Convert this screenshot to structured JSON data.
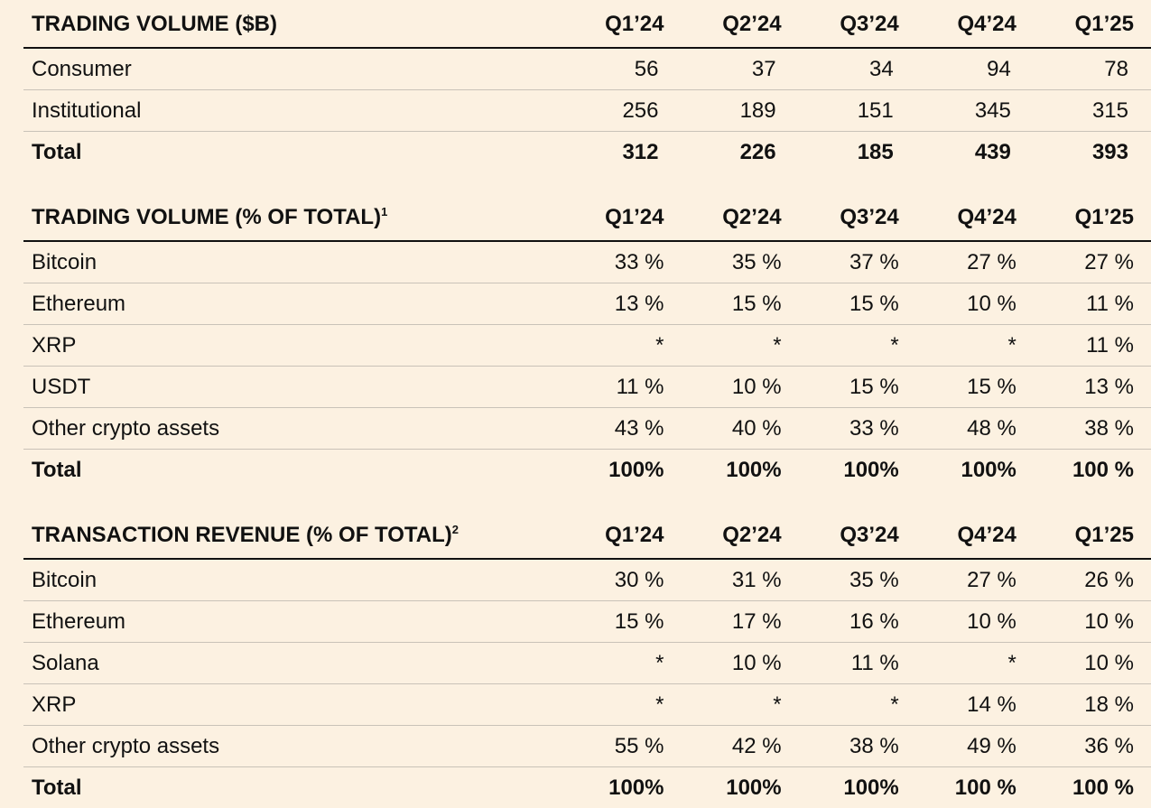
{
  "tables": [
    {
      "title": "TRADING VOLUME ($B)",
      "footnote": "",
      "columns": [
        "Q1’24",
        "Q2’24",
        "Q3’24",
        "Q4’24",
        "Q1’25"
      ],
      "rows": [
        {
          "label": "Consumer",
          "values": [
            "56",
            "37",
            "34",
            "94",
            "78"
          ]
        },
        {
          "label": "Institutional",
          "values": [
            "256",
            "189",
            "151",
            "345",
            "315"
          ]
        },
        {
          "label": "Total",
          "values": [
            "312",
            "226",
            "185",
            "439",
            "393"
          ]
        }
      ]
    },
    {
      "title": "TRADING VOLUME (% OF TOTAL)",
      "footnote": "1",
      "columns": [
        "Q1’24",
        "Q2’24",
        "Q3’24",
        "Q4’24",
        "Q1’25"
      ],
      "rows": [
        {
          "label": "Bitcoin",
          "values": [
            "33 %",
            "35 %",
            "37 %",
            "27 %",
            "27 %"
          ]
        },
        {
          "label": "Ethereum",
          "values": [
            "13 %",
            "15 %",
            "15 %",
            "10 %",
            "11 %"
          ]
        },
        {
          "label": "XRP",
          "values": [
            "*",
            "*",
            "*",
            "*",
            "11 %"
          ]
        },
        {
          "label": "USDT",
          "values": [
            "11 %",
            "10 %",
            "15 %",
            "15 %",
            "13 %"
          ]
        },
        {
          "label": "Other crypto assets",
          "values": [
            "43 %",
            "40 %",
            "33 %",
            "48 %",
            "38 %"
          ]
        },
        {
          "label": "Total",
          "values": [
            "100%",
            "100%",
            "100%",
            "100%",
            "100 %"
          ]
        }
      ]
    },
    {
      "title": "TRANSACTION REVENUE (% OF TOTAL)",
      "footnote": "2",
      "columns": [
        "Q1’24",
        "Q2’24",
        "Q3’24",
        "Q4’24",
        "Q1’25"
      ],
      "rows": [
        {
          "label": "Bitcoin",
          "values": [
            "30 %",
            "31 %",
            "35 %",
            "27 %",
            "26 %"
          ]
        },
        {
          "label": "Ethereum",
          "values": [
            "15 %",
            "17 %",
            "16 %",
            "10 %",
            "10 %"
          ]
        },
        {
          "label": "Solana",
          "values": [
            "*",
            "10 %",
            "11 %",
            "*",
            "10 %"
          ]
        },
        {
          "label": "XRP",
          "values": [
            "*",
            "*",
            "*",
            "14 %",
            "18 %"
          ]
        },
        {
          "label": "Other crypto assets",
          "values": [
            "55 %",
            "42 %",
            "38 %",
            "49 %",
            "36 %"
          ]
        },
        {
          "label": "Total",
          "values": [
            "100%",
            "100%",
            "100%",
            "100 %",
            "100 %"
          ]
        }
      ]
    }
  ]
}
